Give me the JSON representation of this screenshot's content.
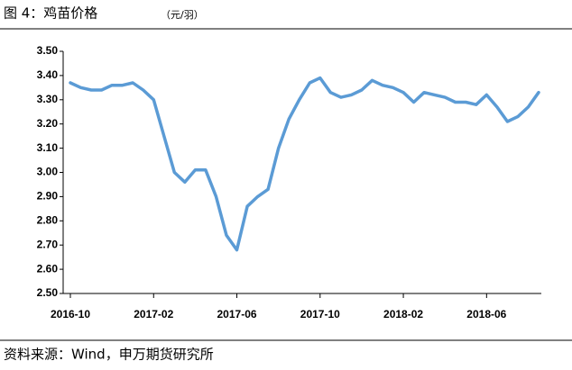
{
  "chart_data": {
    "type": "line",
    "title": "图 4：鸡苗价格",
    "subtitle": "（元/羽）",
    "source": "资料来源：Wind，申万期货研究所",
    "categories": [
      "2016-10",
      null,
      null,
      null,
      null,
      null,
      null,
      null,
      "2017-02",
      null,
      null,
      null,
      null,
      null,
      null,
      null,
      "2017-06",
      null,
      null,
      null,
      null,
      null,
      null,
      null,
      "2017-10",
      null,
      null,
      null,
      null,
      null,
      null,
      null,
      "2018-02",
      null,
      null,
      null,
      null,
      null,
      null,
      null,
      "2018-06",
      null,
      null,
      null,
      null,
      null
    ],
    "series": [
      {
        "name": "鸡苗价格",
        "color": "#5b9bd5",
        "values": [
          3.37,
          3.35,
          3.34,
          3.34,
          3.36,
          3.36,
          3.37,
          3.34,
          3.3,
          3.15,
          3.0,
          2.96,
          3.01,
          3.01,
          2.9,
          2.74,
          2.68,
          2.86,
          2.9,
          2.93,
          3.1,
          3.22,
          3.3,
          3.37,
          3.39,
          3.33,
          3.31,
          3.32,
          3.34,
          3.38,
          3.36,
          3.35,
          3.33,
          3.29,
          3.33,
          3.32,
          3.31,
          3.29,
          3.29,
          3.28,
          3.32,
          3.27,
          3.21,
          3.23,
          3.27,
          3.33
        ]
      }
    ],
    "ylim": [
      2.5,
      3.5
    ],
    "yticks": [
      {
        "value": 2.5,
        "label": "2.50"
      },
      {
        "value": 2.6,
        "label": "2.60"
      },
      {
        "value": 2.7,
        "label": "2.70"
      },
      {
        "value": 2.8,
        "label": "2.80"
      },
      {
        "value": 2.9,
        "label": "2.90"
      },
      {
        "value": 3.0,
        "label": "3.00"
      },
      {
        "value": 3.1,
        "label": "3.10"
      },
      {
        "value": 3.2,
        "label": "3.20"
      },
      {
        "value": 3.3,
        "label": "3.30"
      },
      {
        "value": 3.4,
        "label": "3.40"
      },
      {
        "value": 3.5,
        "label": "3.50"
      }
    ],
    "grid": false
  }
}
